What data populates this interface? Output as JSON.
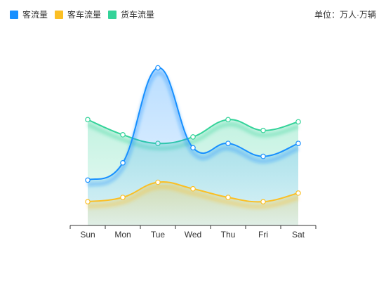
{
  "legend": {
    "items": [
      {
        "label": "客流量",
        "color": "#1890ff"
      },
      {
        "label": "客车流量",
        "color": "#fbbf24"
      },
      {
        "label": "货车流量",
        "color": "#34d399"
      }
    ]
  },
  "unit_label": "单位：万人·万辆",
  "chart_data": {
    "type": "area",
    "categories": [
      "Sun",
      "Mon",
      "Tue",
      "Wed",
      "Thu",
      "Fri",
      "Sat"
    ],
    "series": [
      {
        "name": "货车流量",
        "color": "#34d399",
        "values": [
          49,
          42,
          38,
          41,
          49,
          44,
          48
        ]
      },
      {
        "name": "客流量",
        "color": "#1890ff",
        "values": [
          21,
          29,
          73,
          36,
          38,
          32,
          38
        ]
      },
      {
        "name": "客车流量",
        "color": "#fbbf24",
        "values": [
          11,
          13,
          20,
          17,
          13,
          11,
          15
        ]
      }
    ],
    "ylim": [
      0,
      80
    ],
    "grid": false,
    "legend_position": "top-left"
  }
}
